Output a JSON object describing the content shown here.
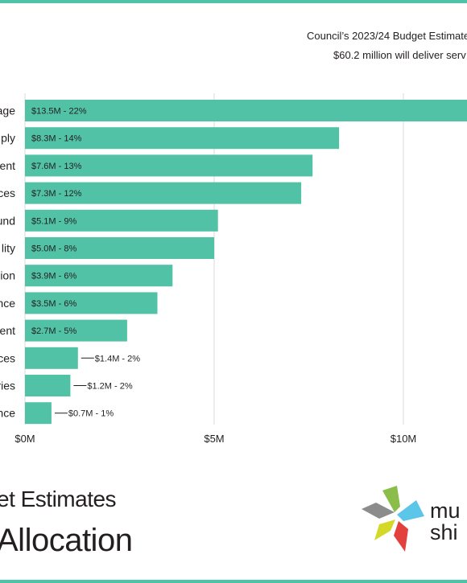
{
  "heading": {
    "line1": "Council’s 2023/24 Budget Estimate",
    "line2": "$60.2 million will deliver serv"
  },
  "footer": {
    "title": "et Estimates",
    "subtitle": "Allocation",
    "logo_text_1": "mu",
    "logo_text_2": "shi"
  },
  "colors": {
    "bar": "#52c2a6",
    "accent": "#4fc3a8",
    "grid": "#d9d9d9"
  },
  "chart_data": {
    "type": "bar",
    "orientation": "horizontal",
    "categories": [
      "age",
      "ply",
      "ent",
      "ces",
      "und",
      "lity",
      "ion",
      "nce",
      "ent",
      "ces",
      "ries",
      "nce"
    ],
    "values": [
      13.5,
      8.3,
      7.6,
      7.3,
      5.1,
      5.0,
      3.9,
      3.5,
      2.7,
      1.4,
      1.2,
      0.7
    ],
    "data_labels": [
      "$13.5M - 22%",
      "$8.3M - 14%",
      "$7.6M - 13%",
      "$7.3M - 12%",
      "$5.1M - 9%",
      "$5.0M - 8%",
      "$3.9M - 6%",
      "$3.5M - 6%",
      "$2.7M - 5%",
      "$1.4M - 2%",
      "$1.2M - 2%",
      "$0.7M - 1%"
    ],
    "x_ticks": [
      0,
      5,
      10
    ],
    "x_tick_labels": [
      "$0M",
      "$5M",
      "$10M"
    ],
    "xlim": [
      0,
      12
    ],
    "grid": true
  }
}
